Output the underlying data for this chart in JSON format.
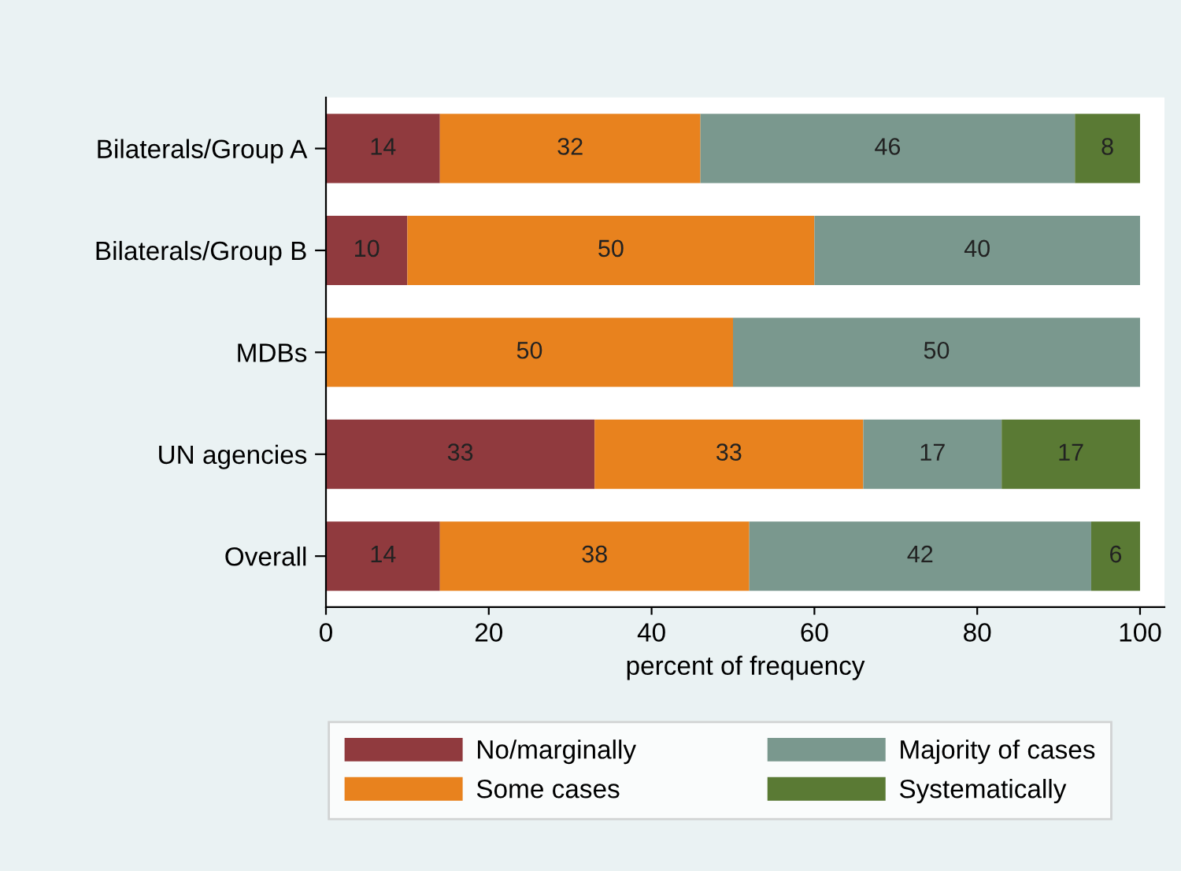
{
  "chart_data": {
    "type": "bar",
    "orientation": "horizontal",
    "stacked": true,
    "data_labels": true,
    "categories": [
      "Bilaterals/Group A",
      "Bilaterals/Group B",
      "MDBs",
      "UN agencies",
      "Overall"
    ],
    "series": [
      {
        "name": "No/marginally",
        "color": "#903a3e",
        "values": [
          14,
          10,
          null,
          33,
          14
        ]
      },
      {
        "name": "Some cases",
        "color": "#e8821e",
        "values": [
          32,
          50,
          50,
          33,
          38
        ]
      },
      {
        "name": "Majority of cases",
        "color": "#7a988e",
        "values": [
          46,
          40,
          50,
          17,
          42
        ]
      },
      {
        "name": "Systematically",
        "color": "#5a7a34",
        "values": [
          8,
          null,
          null,
          17,
          6
        ]
      }
    ],
    "xlabel": "percent of frequency",
    "xlim": [
      0,
      103
    ],
    "xticks": [
      0,
      20,
      40,
      60,
      80,
      100
    ],
    "grid": false,
    "legend": "bottom"
  }
}
